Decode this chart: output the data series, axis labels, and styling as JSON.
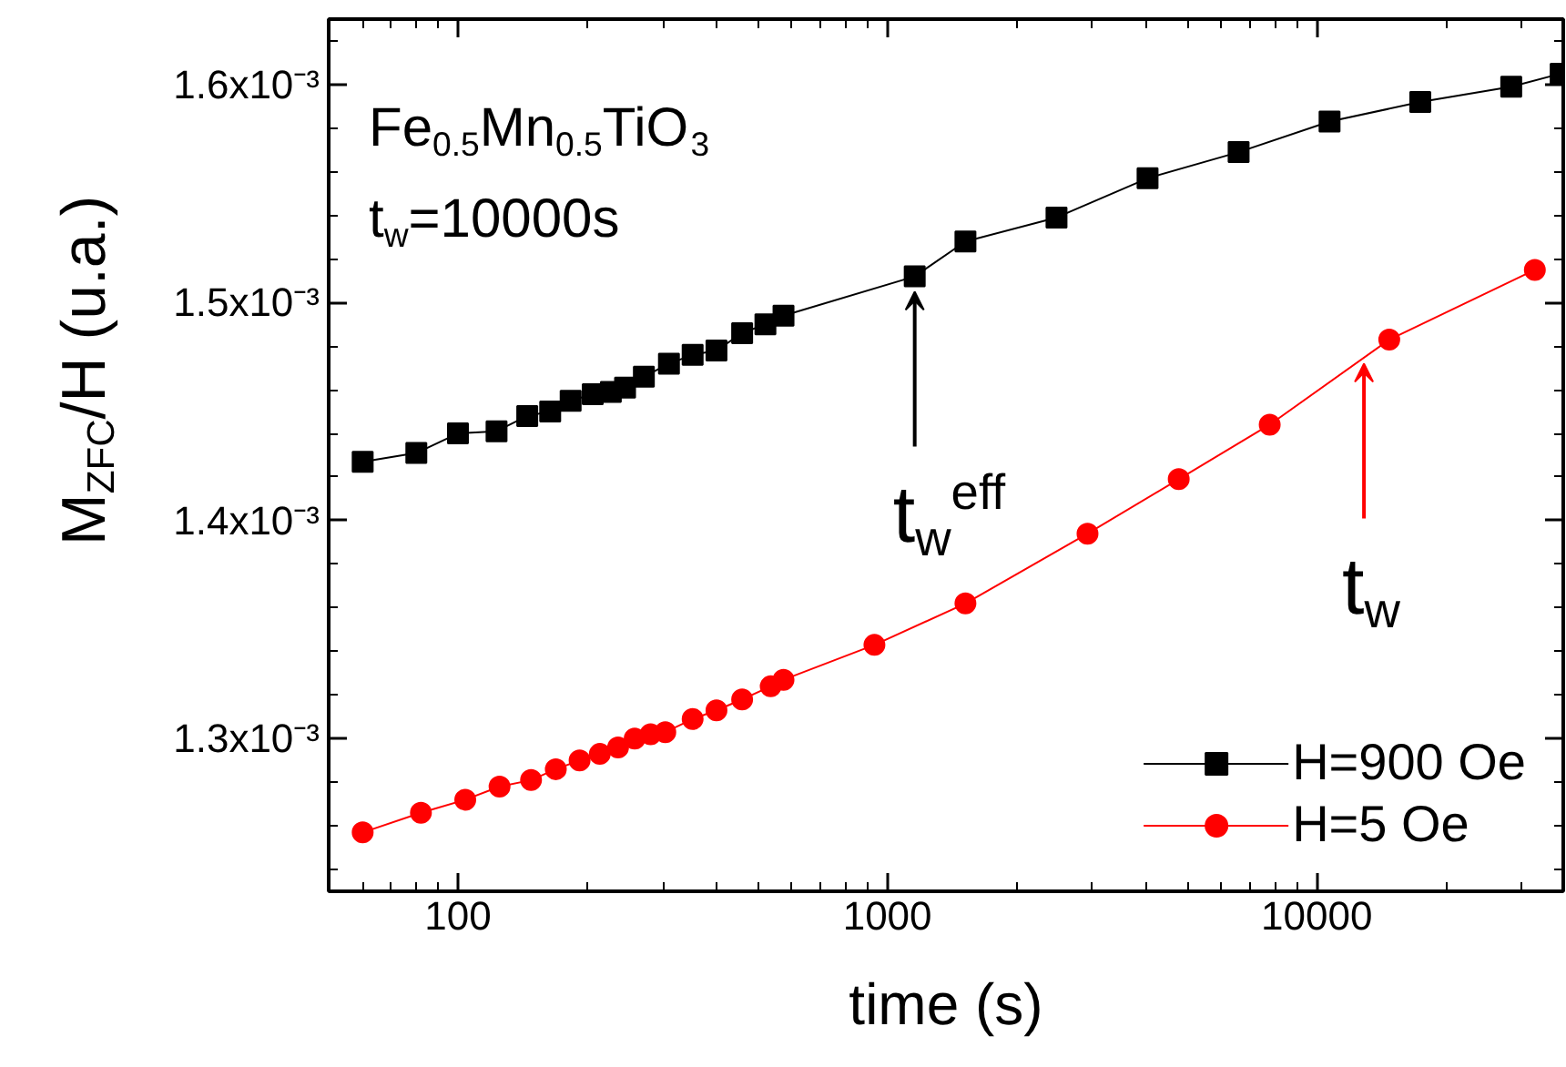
{
  "chart_data": {
    "type": "line",
    "xlabel": "time (s)",
    "ylabel": "M$_{ZFC}$/H (u.a.)",
    "log": "x",
    "xlim": [
      50,
      37500
    ],
    "ylim": [
      0.00123,
      0.00163
    ],
    "xticks": [
      100,
      1000,
      10000
    ],
    "yticks": [
      {
        "value": 0.0013,
        "label": "1.3x10⁻³"
      },
      {
        "value": 0.0014,
        "label": "1.4x10⁻³"
      },
      {
        "value": 0.0015,
        "label": "1.5x10⁻³"
      },
      {
        "value": 0.0016,
        "label": "1.6x10⁻³"
      }
    ],
    "grid": false,
    "legend": "bottom right",
    "series": [
      {
        "name": "H=900 Oe",
        "color": "#000000",
        "marker": "square",
        "x": [
          60,
          80,
          100,
          123,
          145,
          164,
          183,
          206,
          227,
          245,
          271,
          310,
          352,
          400,
          459,
          520,
          573,
          1158,
          1520,
          2477,
          4036,
          6577,
          10710,
          17420,
          28370,
          36980
        ],
        "values": [
          0.001427,
          0.001431,
          0.00144,
          0.001441,
          0.001448,
          0.00145,
          0.001455,
          0.001458,
          0.001459,
          0.001461,
          0.001466,
          0.001472,
          0.001476,
          0.001478,
          0.001486,
          0.00149,
          0.001494,
          0.001512,
          0.001528,
          0.001539,
          0.001557,
          0.001569,
          0.001583,
          0.001592,
          0.001599,
          0.001605
        ]
      },
      {
        "name": "H=5 Oe",
        "color": "#ff0000",
        "marker": "circle",
        "x": [
          60,
          82,
          104,
          125,
          148,
          169,
          192,
          214,
          236,
          258,
          281,
          304,
          352,
          400,
          459,
          535,
          573,
          933,
          1520,
          2925,
          4770,
          7770,
          14750,
          32200
        ],
        "values": [
          0.001257,
          0.001266,
          0.001272,
          0.001278,
          0.001281,
          0.001286,
          0.00129,
          0.001293,
          0.001296,
          0.0013,
          0.001302,
          0.001303,
          0.001309,
          0.001313,
          0.001318,
          0.001324,
          0.001327,
          0.001343,
          0.001362,
          0.001394,
          0.001419,
          0.001444,
          0.001483,
          0.001515
        ]
      }
    ],
    "annotations": [
      "Fe$_{0.5}$Mn$_{0.5}$TiO$_{3}$",
      "t$_{w}$=10000s",
      {
        "text": "t$_{w}$$^{eff}$",
        "x": 1158,
        "y": 0.001505
      },
      {
        "text": "t$_{w}$",
        "x": 12880,
        "y": 0.001472
      }
    ]
  }
}
